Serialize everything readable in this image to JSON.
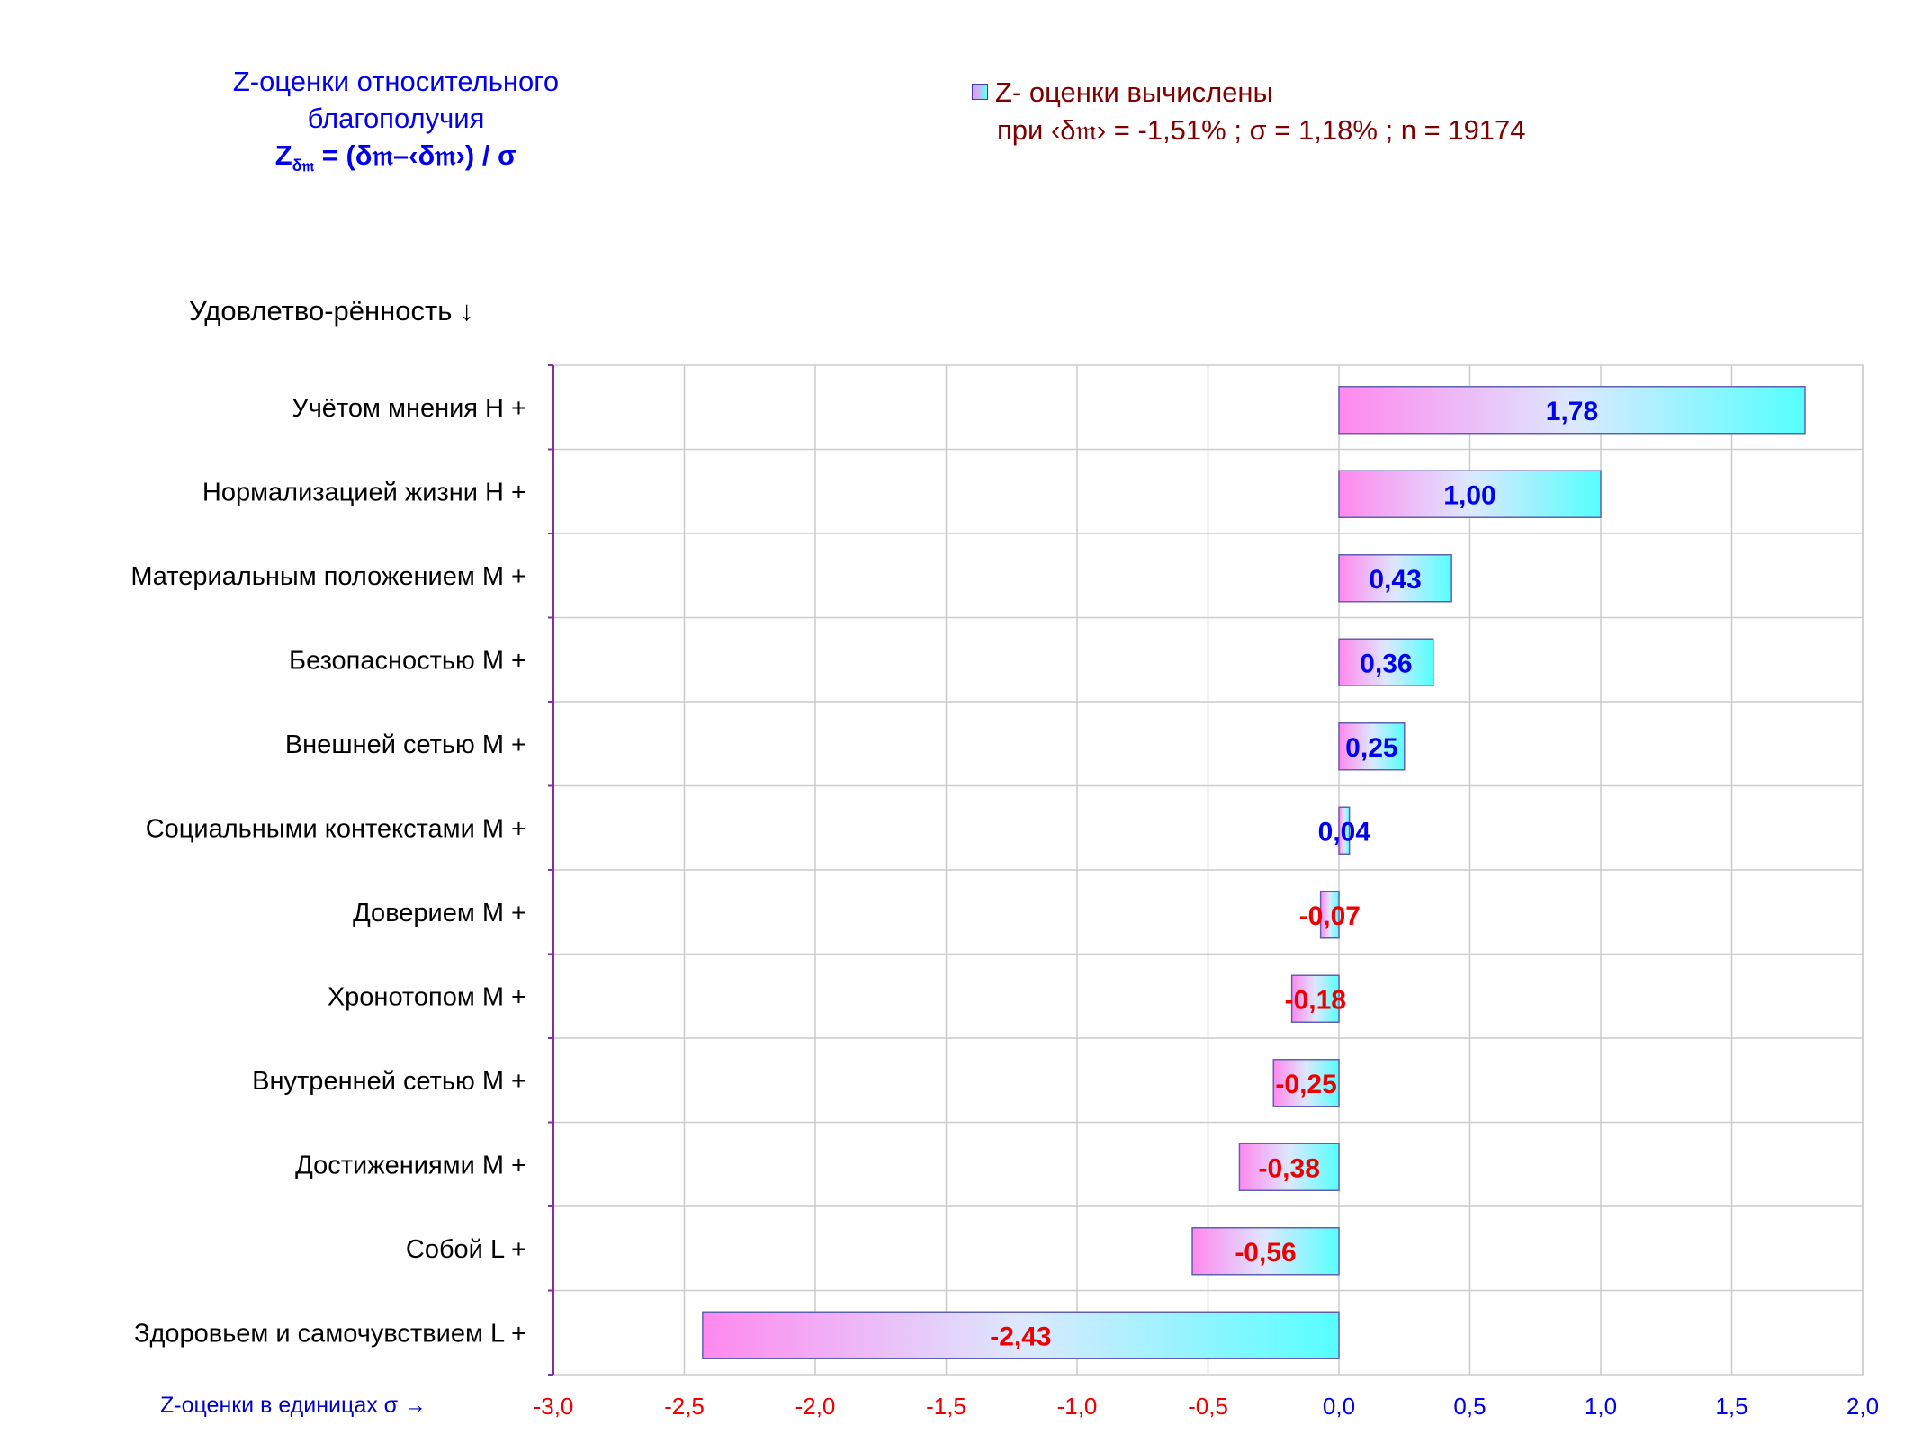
{
  "title": {
    "line1": "Z-оценки  относительного",
    "line2": "благополучия",
    "formula_z": "Z",
    "formula_sub": "δ𝔪",
    "formula_rest": " = (δ𝔪–‹δ𝔪›)  / σ"
  },
  "legend": {
    "line1": "Z- оценки вычислены",
    "line2": "при ‹δ𝔪› = -1,51% ; σ = 1,18% ; n = 19174"
  },
  "category_header": "Удовлетво-рённость ↓",
  "x_axis_caption": "Z-оценки в единицах σ →",
  "colors": {
    "bar_left": "#ff88ee",
    "bar_right": "#55ffff",
    "bar_border": "#6060b0",
    "positive_label": "#0000ee",
    "negative_label": "#ee0000",
    "title": "#0000ee",
    "legend_text": "#800000",
    "axis_line": "#8030a0",
    "grid": "#cccccc"
  },
  "chart_data": {
    "type": "bar",
    "orientation": "horizontal",
    "xlim": [
      -3.0,
      2.0
    ],
    "x_ticks": [
      "-3,0",
      "-2,5",
      "-2,0",
      "-1,5",
      "-1,0",
      "-0,5",
      "0,0",
      "0,5",
      "1,0",
      "1,5",
      "2,0"
    ],
    "x_tick_values": [
      -3.0,
      -2.5,
      -2.0,
      -1.5,
      -1.0,
      -0.5,
      0.0,
      0.5,
      1.0,
      1.5,
      2.0
    ],
    "grid": true,
    "legend_position": "top-right",
    "categories": [
      "Учётом мнения  Н +",
      "Нормализацией жизни  Н +",
      "Материальным положением  М +",
      "Безопасностью  М +",
      "Внешней сетью  М +",
      "Социальными контекстами  М +",
      "Доверием  М +",
      "Хронотопом  М +",
      "Внутренней сетью  М +",
      "Достижениями  М +",
      "Собой  L +",
      "Здоровьем и самочувствием  L +"
    ],
    "values": [
      1.78,
      1.0,
      0.43,
      0.36,
      0.25,
      0.04,
      -0.07,
      -0.18,
      -0.25,
      -0.38,
      -0.56,
      -2.43
    ],
    "value_labels": [
      "1,78",
      "1,00",
      "0,43",
      "0,36",
      "0,25",
      "0,04",
      "-0,07",
      "-0,18",
      "-0,25",
      "-0,38",
      "-0,56",
      "-2,43"
    ]
  }
}
